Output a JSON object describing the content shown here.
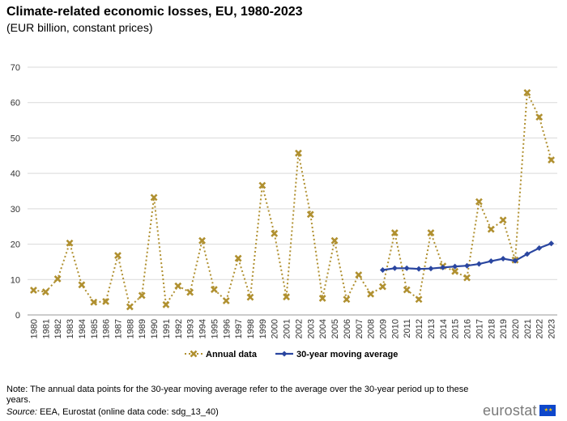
{
  "header": {
    "title": "Climate-related economic losses, EU, 1980-2023",
    "subtitle": "(EUR billion, constant prices)"
  },
  "footer": {
    "note": "Note: The annual data points for the 30-year moving average refer to the average over the 30-year period up to these years.",
    "source_label": "Source:",
    "source_text": " EEA, Eurostat (online data code: sdg_13_40)",
    "logo_text": "eurostat"
  },
  "chart_data": {
    "type": "line",
    "title": "Climate-related economic losses, EU, 1980-2023",
    "subtitle": "(EUR billion, constant prices)",
    "xlabel": "",
    "ylabel": "",
    "ylim": [
      0,
      70
    ],
    "yticks": [
      0,
      10,
      20,
      30,
      40,
      50,
      60,
      70
    ],
    "grid": true,
    "legend_position": "bottom-center",
    "categories": [
      "1980",
      "1981",
      "1982",
      "1983",
      "1984",
      "1985",
      "1986",
      "1987",
      "1988",
      "1989",
      "1990",
      "1991",
      "1992",
      "1993",
      "1994",
      "1995",
      "1996",
      "1997",
      "1998",
      "1999",
      "2000",
      "2001",
      "2002",
      "2003",
      "2004",
      "2005",
      "2006",
      "2007",
      "2008",
      "2009",
      "2010",
      "2011",
      "2012",
      "2013",
      "2014",
      "2015",
      "2016",
      "2017",
      "2018",
      "2019",
      "2020",
      "2021",
      "2022",
      "2023"
    ],
    "series": [
      {
        "name": "Annual data",
        "color": "#b09030",
        "style": "dotted",
        "marker": "cross",
        "values": [
          7.0,
          6.5,
          10.2,
          20.3,
          8.5,
          3.6,
          3.8,
          16.8,
          2.3,
          5.5,
          33.2,
          2.9,
          8.2,
          6.4,
          21.0,
          7.2,
          4.0,
          16.0,
          5.0,
          36.6,
          23.0,
          5.1,
          45.7,
          28.4,
          4.7,
          21.0,
          4.4,
          11.3,
          5.9,
          8.0,
          23.2,
          7.1,
          4.4,
          23.2,
          13.8,
          12.3,
          10.5,
          32.0,
          24.2,
          26.8,
          15.5,
          62.8,
          55.9,
          43.8
        ]
      },
      {
        "name": "30-year moving average",
        "color": "#2a46a0",
        "style": "solid",
        "marker": "diamond",
        "values": [
          null,
          null,
          null,
          null,
          null,
          null,
          null,
          null,
          null,
          null,
          null,
          null,
          null,
          null,
          null,
          null,
          null,
          null,
          null,
          null,
          null,
          null,
          null,
          null,
          null,
          null,
          null,
          null,
          null,
          12.7,
          13.2,
          13.2,
          13.0,
          13.1,
          13.4,
          13.7,
          13.9,
          14.4,
          15.2,
          15.9,
          15.3,
          17.2,
          18.9,
          20.2
        ]
      }
    ]
  }
}
